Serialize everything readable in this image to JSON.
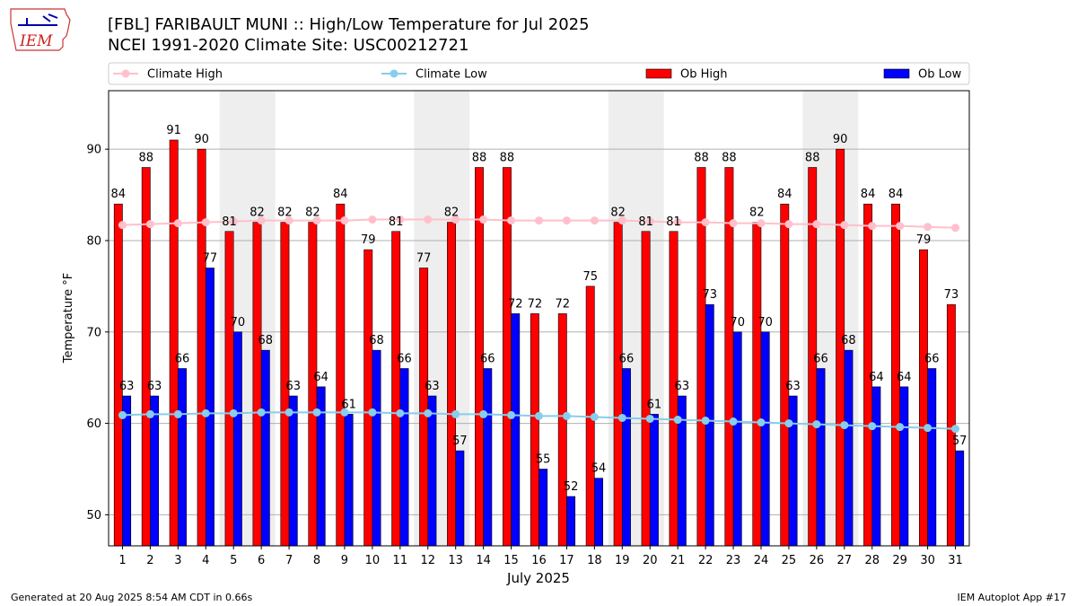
{
  "header": {
    "title_line1": "[FBL] FARIBAULT MUNI :: High/Low Temperature for Jul 2025",
    "title_line2": "NCEI 1991-2020 Climate Site: USC00212721",
    "logo_text": "IEM"
  },
  "footer": {
    "generated": "Generated at 20 Aug 2025 8:54 AM CDT in 0.66s",
    "app": "IEM Autoplot App #17"
  },
  "colors": {
    "ob_high": "#ff0000",
    "ob_low": "#0000ff",
    "climate_high": "#ffc0cb",
    "climate_low": "#87ceeb",
    "weekend_band": "#eeeeee"
  },
  "chart_data": {
    "type": "bar",
    "title": "[FBL] FARIBAULT MUNI :: High/Low Temperature for Jul 2025",
    "subtitle": "NCEI 1991-2020 Climate Site: USC00212721",
    "xlabel": "July 2025",
    "ylabel": "Temperature °F",
    "ylim": [
      46.6,
      96.4
    ],
    "yticks": [
      50,
      60,
      70,
      80,
      90
    ],
    "grid": true,
    "legend_position": "top",
    "weekend_days": [
      [
        5,
        6
      ],
      [
        12,
        13
      ],
      [
        19,
        20
      ],
      [
        26,
        27
      ]
    ],
    "categories": [
      "1",
      "2",
      "3",
      "4",
      "5",
      "6",
      "7",
      "8",
      "9",
      "10",
      "11",
      "12",
      "13",
      "14",
      "15",
      "16",
      "17",
      "18",
      "19",
      "20",
      "21",
      "22",
      "23",
      "24",
      "25",
      "26",
      "27",
      "28",
      "29",
      "30",
      "31"
    ],
    "series": [
      {
        "name": "Ob High",
        "kind": "bar",
        "values": [
          84,
          88,
          91,
          90,
          81,
          82,
          82,
          82,
          84,
          79,
          81,
          77,
          82,
          88,
          88,
          72,
          72,
          75,
          82,
          81,
          81,
          88,
          88,
          82,
          84,
          88,
          90,
          84,
          84,
          79,
          73
        ]
      },
      {
        "name": "Ob Low",
        "kind": "bar",
        "values": [
          63,
          63,
          66,
          77,
          70,
          68,
          63,
          64,
          61,
          68,
          66,
          63,
          57,
          66,
          72,
          55,
          52,
          54,
          66,
          61,
          63,
          73,
          70,
          70,
          63,
          66,
          68,
          64,
          64,
          66,
          57
        ]
      },
      {
        "name": "Climate High",
        "kind": "line",
        "values": [
          81.7,
          81.8,
          81.9,
          82.0,
          82.1,
          82.2,
          82.2,
          82.2,
          82.2,
          82.3,
          82.3,
          82.3,
          82.3,
          82.3,
          82.2,
          82.2,
          82.2,
          82.2,
          82.2,
          82.1,
          82.0,
          82.0,
          81.9,
          81.9,
          81.8,
          81.8,
          81.7,
          81.6,
          81.6,
          81.5,
          81.4
        ]
      },
      {
        "name": "Climate Low",
        "kind": "line",
        "values": [
          60.9,
          61.0,
          61.0,
          61.1,
          61.1,
          61.2,
          61.2,
          61.2,
          61.2,
          61.2,
          61.1,
          61.1,
          61.0,
          61.0,
          60.9,
          60.8,
          60.8,
          60.7,
          60.6,
          60.5,
          60.4,
          60.3,
          60.2,
          60.1,
          60.0,
          59.9,
          59.8,
          59.7,
          59.6,
          59.5,
          59.4
        ]
      }
    ]
  }
}
